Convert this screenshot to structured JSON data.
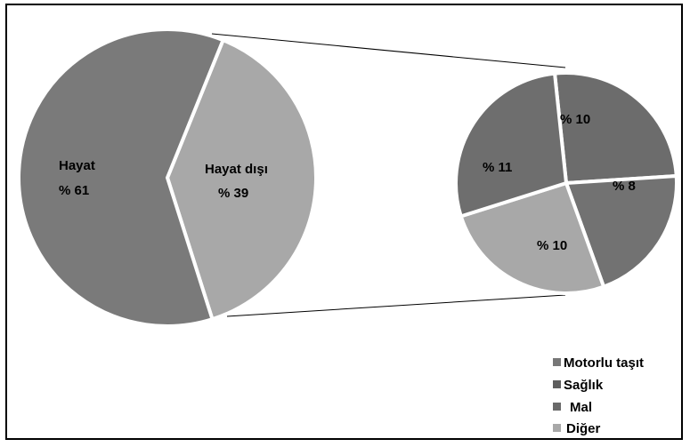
{
  "chart_data": {
    "type": "pie",
    "main_pie": {
      "slices": [
        {
          "label": "Hayat",
          "value_label": "% 61",
          "value": 61,
          "color": "#7a7a7a"
        },
        {
          "label": "Hayat dışı",
          "value_label": "% 39",
          "value": 39,
          "color": "#a8a8a8"
        }
      ]
    },
    "detail_pie": {
      "slices": [
        {
          "value_label": "% 10",
          "value": 10,
          "color": "#6c6c6c"
        },
        {
          "value_label": "% 8",
          "value": 8,
          "color": "#727272"
        },
        {
          "value_label": "% 10",
          "value": 10,
          "color": "#a8a8a8"
        },
        {
          "value_label": "% 11",
          "value": 11,
          "color": "#6e6e6e"
        }
      ]
    },
    "legend": {
      "placement": "bottom-right",
      "entries": [
        {
          "label": "Motorlu taşıt",
          "color": "#777777"
        },
        {
          "label": "Sağlık",
          "color": "#5e5e5e"
        },
        {
          "label": "Mal",
          "color": "#6a6a6a"
        },
        {
          "label": "Diğer",
          "color": "#a8a8a8"
        }
      ]
    }
  }
}
